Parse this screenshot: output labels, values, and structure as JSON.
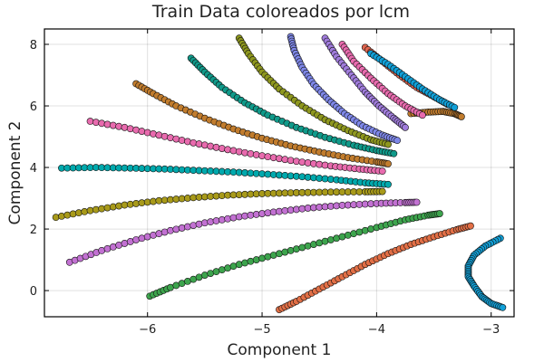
{
  "chart_data": {
    "type": "scatter",
    "title": "Train Data coloreados por lcm",
    "xlabel": "Component 1",
    "ylabel": "Component 2",
    "xlim": [
      -6.9,
      -2.8
    ],
    "ylim": [
      -0.85,
      8.5
    ],
    "xticks": [
      -6,
      -5,
      -4,
      -3
    ],
    "xtick_labels": [
      "−6",
      "−5",
      "−4",
      "−3"
    ],
    "yticks": [
      0,
      2,
      4,
      6,
      8
    ],
    "ytick_labels": [
      "0",
      "2",
      "4",
      "6",
      "8"
    ],
    "grid": true,
    "legend": "none",
    "colors": [
      "#e26f46",
      "#3da44d",
      "#c271d2",
      "#a89a1a",
      "#00a9ad",
      "#e86bae",
      "#c17c2d",
      "#109a8a",
      "#8e971e",
      "#7e87e8",
      "#a07cdc",
      "#e0654f",
      "#10a0d8"
    ],
    "series": [
      {
        "color": "#e26f46",
        "points": [
          [
            -4.85,
            -0.62
          ],
          [
            -4.7,
            -0.35
          ],
          [
            -4.5,
            0.05
          ],
          [
            -4.3,
            0.45
          ],
          [
            -4.1,
            0.85
          ],
          [
            -3.9,
            1.2
          ],
          [
            -3.7,
            1.5
          ],
          [
            -3.5,
            1.75
          ],
          [
            -3.3,
            1.98
          ],
          [
            -3.18,
            2.1
          ]
        ]
      },
      {
        "color": "#3da44d",
        "points": [
          [
            -5.98,
            -0.18
          ],
          [
            -5.8,
            0.1
          ],
          [
            -5.5,
            0.5
          ],
          [
            -5.2,
            0.85
          ],
          [
            -4.9,
            1.15
          ],
          [
            -4.6,
            1.45
          ],
          [
            -4.3,
            1.75
          ],
          [
            -4.0,
            2.05
          ],
          [
            -3.75,
            2.3
          ],
          [
            -3.55,
            2.45
          ],
          [
            -3.45,
            2.5
          ]
        ]
      },
      {
        "color": "#c271d2",
        "points": [
          [
            -6.68,
            0.92
          ],
          [
            -6.4,
            1.3
          ],
          [
            -6.1,
            1.65
          ],
          [
            -5.8,
            1.95
          ],
          [
            -5.5,
            2.2
          ],
          [
            -5.2,
            2.4
          ],
          [
            -4.9,
            2.55
          ],
          [
            -4.6,
            2.68
          ],
          [
            -4.3,
            2.77
          ],
          [
            -4.0,
            2.83
          ],
          [
            -3.75,
            2.86
          ],
          [
            -3.65,
            2.87
          ]
        ]
      },
      {
        "color": "#a89a1a",
        "points": [
          [
            -6.8,
            2.38
          ],
          [
            -6.5,
            2.6
          ],
          [
            -6.2,
            2.78
          ],
          [
            -5.9,
            2.92
          ],
          [
            -5.6,
            3.02
          ],
          [
            -5.3,
            3.1
          ],
          [
            -5.0,
            3.15
          ],
          [
            -4.7,
            3.18
          ],
          [
            -4.4,
            3.2
          ],
          [
            -4.1,
            3.21
          ],
          [
            -3.95,
            3.22
          ]
        ]
      },
      {
        "color": "#00a9ad",
        "points": [
          [
            -6.75,
            3.98
          ],
          [
            -6.45,
            4.0
          ],
          [
            -6.15,
            3.98
          ],
          [
            -5.85,
            3.95
          ],
          [
            -5.55,
            3.9
          ],
          [
            -5.25,
            3.85
          ],
          [
            -4.95,
            3.78
          ],
          [
            -4.65,
            3.7
          ],
          [
            -4.35,
            3.6
          ],
          [
            -4.1,
            3.5
          ],
          [
            -3.9,
            3.45
          ]
        ]
      },
      {
        "color": "#e86bae",
        "points": [
          [
            -6.5,
            5.5
          ],
          [
            -6.2,
            5.3
          ],
          [
            -5.9,
            5.05
          ],
          [
            -5.6,
            4.8
          ],
          [
            -5.3,
            4.58
          ],
          [
            -5.0,
            4.38
          ],
          [
            -4.7,
            4.2
          ],
          [
            -4.4,
            4.05
          ],
          [
            -4.15,
            3.95
          ],
          [
            -3.95,
            3.88
          ]
        ]
      },
      {
        "color": "#c17c2d",
        "points": [
          [
            -6.1,
            6.72
          ],
          [
            -5.95,
            6.4
          ],
          [
            -5.75,
            6.0
          ],
          [
            -5.5,
            5.6
          ],
          [
            -5.25,
            5.25
          ],
          [
            -5.0,
            4.95
          ],
          [
            -4.75,
            4.7
          ],
          [
            -4.5,
            4.5
          ],
          [
            -4.25,
            4.32
          ],
          [
            -4.0,
            4.18
          ],
          [
            -3.9,
            4.12
          ]
        ]
      },
      {
        "color": "#109a8a",
        "points": [
          [
            -5.62,
            7.55
          ],
          [
            -5.5,
            7.1
          ],
          [
            -5.35,
            6.6
          ],
          [
            -5.15,
            6.1
          ],
          [
            -4.95,
            5.7
          ],
          [
            -4.7,
            5.3
          ],
          [
            -4.45,
            4.98
          ],
          [
            -4.2,
            4.72
          ],
          [
            -4.0,
            4.55
          ],
          [
            -3.85,
            4.45
          ]
        ]
      },
      {
        "color": "#8e971e",
        "points": [
          [
            -5.2,
            8.2
          ],
          [
            -5.12,
            7.7
          ],
          [
            -5.0,
            7.1
          ],
          [
            -4.85,
            6.55
          ],
          [
            -4.65,
            6.0
          ],
          [
            -4.45,
            5.55
          ],
          [
            -4.25,
            5.2
          ],
          [
            -4.05,
            4.9
          ],
          [
            -3.9,
            4.75
          ]
        ]
      },
      {
        "color": "#7e87e8",
        "points": [
          [
            -4.75,
            8.25
          ],
          [
            -4.72,
            7.8
          ],
          [
            -4.65,
            7.25
          ],
          [
            -4.55,
            6.7
          ],
          [
            -4.42,
            6.2
          ],
          [
            -4.28,
            5.75
          ],
          [
            -4.12,
            5.35
          ],
          [
            -3.95,
            5.05
          ],
          [
            -3.82,
            4.88
          ]
        ]
      },
      {
        "color": "#a07cdc",
        "points": [
          [
            -4.45,
            8.2
          ],
          [
            -4.35,
            7.6
          ],
          [
            -4.22,
            7.0
          ],
          [
            -4.1,
            6.45
          ],
          [
            -3.98,
            6.0
          ],
          [
            -3.85,
            5.6
          ],
          [
            -3.75,
            5.3
          ]
        ]
      },
      {
        "color": "#e0654f",
        "points": [
          [
            -4.1,
            7.9
          ],
          [
            -3.95,
            7.45
          ],
          [
            -3.8,
            7.0
          ],
          [
            -3.65,
            6.6
          ],
          [
            -3.5,
            6.3
          ],
          [
            -3.38,
            6.05
          ]
        ]
      },
      {
        "color": "#c17c2d",
        "points": [
          [
            -3.7,
            5.75
          ],
          [
            -3.55,
            5.8
          ],
          [
            -3.42,
            5.82
          ],
          [
            -3.32,
            5.75
          ],
          [
            -3.26,
            5.65
          ]
        ]
      },
      {
        "color": "#10a0d8",
        "points": [
          [
            -2.92,
            1.7
          ],
          [
            -3.05,
            1.45
          ],
          [
            -3.15,
            1.15
          ],
          [
            -3.2,
            0.8
          ],
          [
            -3.2,
            0.45
          ],
          [
            -3.15,
            0.15
          ],
          [
            -3.08,
            -0.2
          ],
          [
            -3.0,
            -0.42
          ],
          [
            -2.9,
            -0.55
          ]
        ]
      },
      {
        "color": "#10a0d8",
        "points": [
          [
            -4.05,
            7.7
          ],
          [
            -3.9,
            7.35
          ],
          [
            -3.75,
            6.95
          ],
          [
            -3.6,
            6.55
          ],
          [
            -3.45,
            6.2
          ],
          [
            -3.32,
            5.95
          ]
        ]
      },
      {
        "color": "#e86bae",
        "points": [
          [
            -4.3,
            8.0
          ],
          [
            -4.2,
            7.45
          ],
          [
            -4.05,
            6.9
          ],
          [
            -3.9,
            6.4
          ],
          [
            -3.75,
            6.0
          ],
          [
            -3.6,
            5.7
          ]
        ]
      }
    ]
  }
}
